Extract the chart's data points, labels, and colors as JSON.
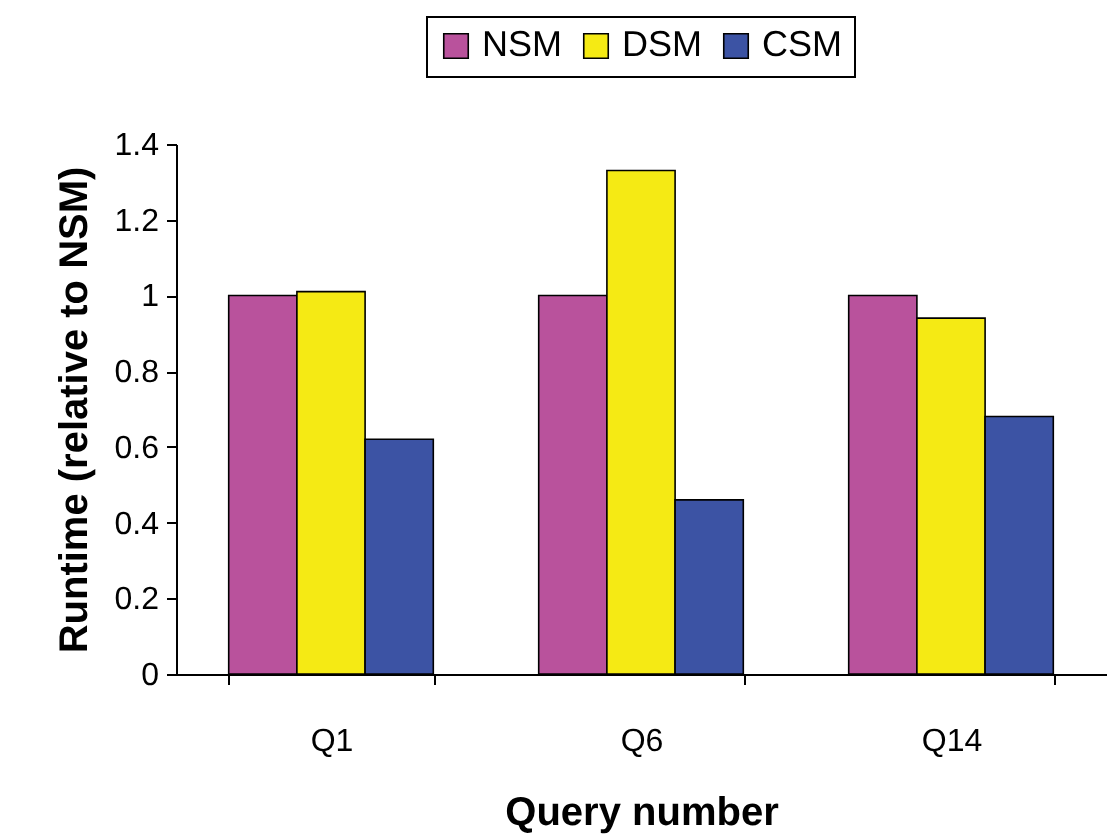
{
  "chart_data": {
    "type": "bar",
    "xlabel": "Query number",
    "ylabel": "Runtime (relative to NSM)",
    "categories": [
      "Q1",
      "Q6",
      "Q14"
    ],
    "series": [
      {
        "name": "NSM",
        "color": "#b9529c",
        "values": [
          1,
          1,
          1
        ]
      },
      {
        "name": "DSM",
        "color": "#f5ea14",
        "values": [
          1.01,
          1.33,
          0.94
        ]
      },
      {
        "name": "CSM",
        "color": "#3c53a4",
        "values": [
          0.62,
          0.46,
          0.68
        ]
      }
    ],
    "ylim": [
      0,
      1.4
    ],
    "yticks": [
      0,
      0.2,
      0.4,
      0.6,
      0.8,
      1,
      1.2,
      1.4
    ],
    "grid": false,
    "legend": "top"
  }
}
